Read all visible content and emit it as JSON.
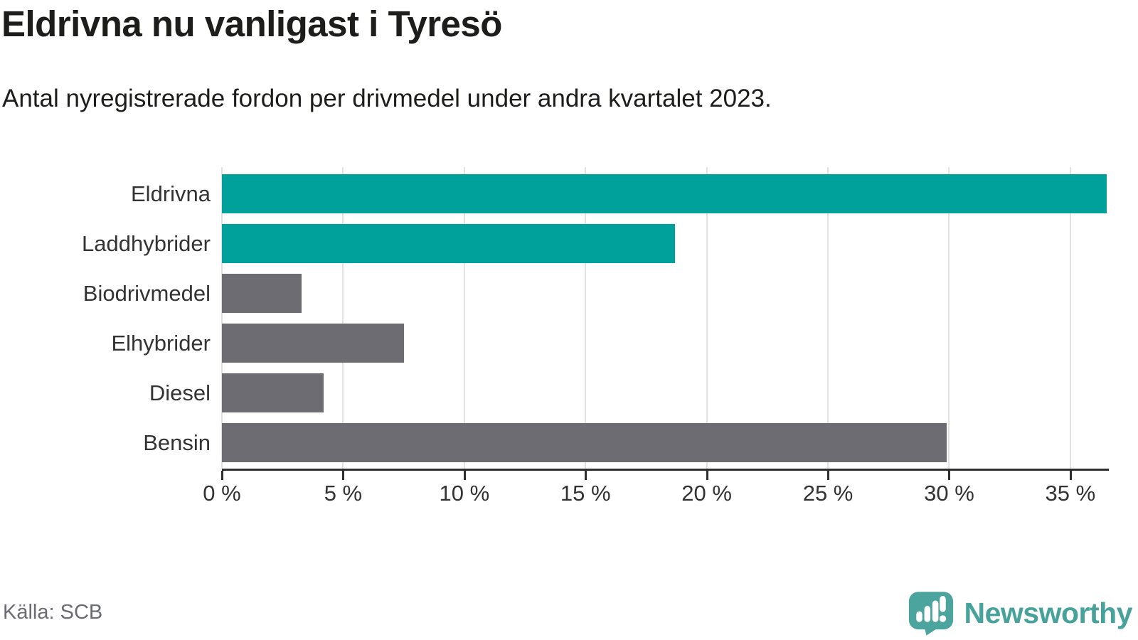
{
  "header": {
    "title": "Eldrivna nu vanligast i Tyresö",
    "subtitle": "Antal nyregistrerade fordon per drivmedel under andra kvartalet 2023."
  },
  "chart_data": {
    "type": "bar",
    "orientation": "horizontal",
    "title": "Eldrivna nu vanligast i Tyresö",
    "subtitle": "Antal nyregistrerade fordon per drivmedel under andra kvartalet 2023.",
    "categories": [
      "Eldrivna",
      "Laddhybrider",
      "Biodrivmedel",
      "Elhybrider",
      "Diesel",
      "Bensin"
    ],
    "values": [
      36.5,
      18.7,
      3.3,
      7.5,
      4.2,
      29.9
    ],
    "unit": "%",
    "xlabel": "",
    "ylabel": "",
    "xlim": [
      0,
      36.5
    ],
    "x_tick_values": [
      0,
      5,
      10,
      15,
      20,
      25,
      30,
      35
    ],
    "x_tick_labels": [
      "0 %",
      "5 %",
      "10 %",
      "15 %",
      "20 %",
      "25 %",
      "30 %",
      "35 %"
    ],
    "grid": true,
    "legend": false,
    "bar_colors": [
      "#00a19a",
      "#00a19a",
      "#6d6c72",
      "#6d6c72",
      "#6d6c72",
      "#6d6c72"
    ]
  },
  "colors": {
    "highlight_teal": "#00a19a",
    "neutral_gray": "#6d6c72",
    "gridline": "#e2e2e2",
    "axis": "#2f2f2f",
    "text_dark": "#1d1d1b",
    "text_label": "#333333",
    "text_muted": "#6b6b74",
    "brand_teal": "#47a29b",
    "logo_bubble": "#4ba59e"
  },
  "footer": {
    "source": "Källa: SCB",
    "brand": "Newsworthy",
    "logo_icon": "newsworthy-speech-bubble-chart-icon"
  }
}
